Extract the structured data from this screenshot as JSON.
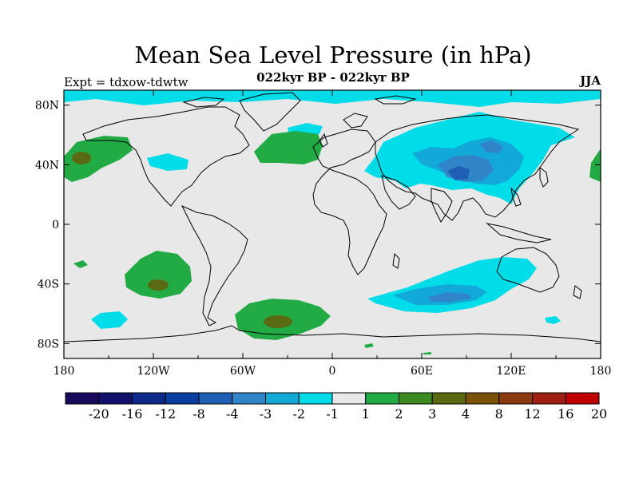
{
  "title": "Mean Sea Level Pressure (in hPa)",
  "subtitle": "022kyr BP - 022kyr BP",
  "experiment": "Expt = tdxow-tdwtw",
  "season": "JJA",
  "x_ticks": [
    {
      "value": -180,
      "label": "180"
    },
    {
      "value": -120,
      "label": "120W"
    },
    {
      "value": -60,
      "label": "60W"
    },
    {
      "value": 0,
      "label": "0"
    },
    {
      "value": 60,
      "label": "60E"
    },
    {
      "value": 120,
      "label": "120E"
    },
    {
      "value": 180,
      "label": "180"
    }
  ],
  "y_ticks": [
    {
      "value": 80,
      "label": "80N"
    },
    {
      "value": 40,
      "label": "40N"
    },
    {
      "value": 0,
      "label": "0"
    },
    {
      "value": -40,
      "label": "40S"
    },
    {
      "value": -80,
      "label": "80S"
    }
  ],
  "colorbar": {
    "colors": [
      "#1a0a5c",
      "#12126e",
      "#0d2a8a",
      "#0a3ea0",
      "#1f5fb5",
      "#2f85c8",
      "#12a9d8",
      "#00dde8",
      "#e8e8e8",
      "#22aa44",
      "#3e8a22",
      "#5a6a12",
      "#7a520a",
      "#8a3a12",
      "#9e1f12",
      "#c00000"
    ],
    "labels": [
      "-20",
      "-16",
      "-12",
      "-8",
      "-4",
      "-3",
      "-2",
      "-1",
      "1",
      "2",
      "3",
      "4",
      "8",
      "12",
      "16",
      "20"
    ]
  },
  "colors": {
    "background": "#e8e8e8",
    "negative_1": "#00dde8",
    "negative_2": "#12a9d8",
    "negative_3": "#2f85c8",
    "negative_4": "#1f5fb5",
    "positive_1": "#22aa44",
    "positive_2": "#5a6a12"
  }
}
